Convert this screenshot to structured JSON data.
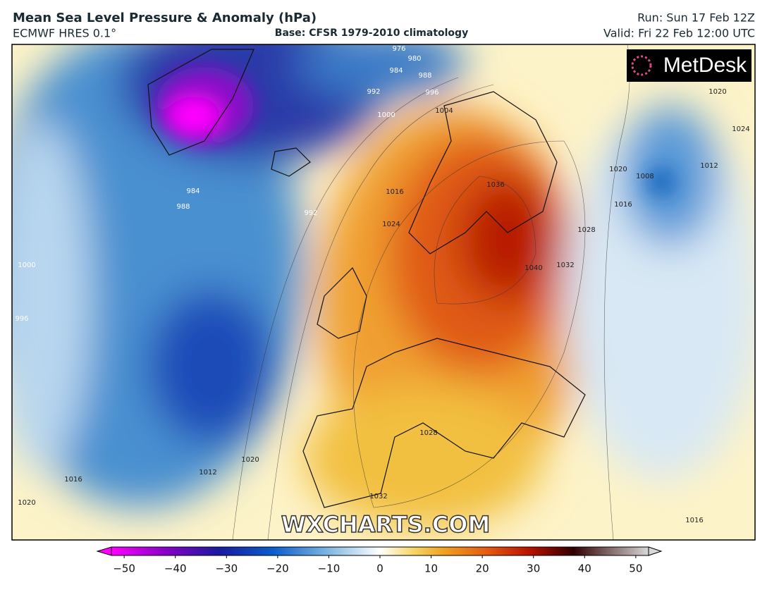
{
  "header": {
    "title": "Mean Sea Level Pressure & Anomaly (hPa)",
    "model": "ECMWF HRES 0.1°",
    "base": "Base: CFSR 1979-2010 climatology",
    "run": "Run: Sun 17 Feb 12Z",
    "valid": "Valid: Fri 22 Feb 12:00 UTC"
  },
  "logo": "MetDesk",
  "watermark": "WXCHARTS.COM",
  "isobar_labels": [
    976,
    980,
    984,
    988,
    992,
    996,
    1000,
    1004,
    1016,
    1024,
    1036,
    1040,
    1032,
    1028,
    1020,
    1016,
    1008,
    1012,
    984,
    988,
    992,
    1000,
    996,
    1012,
    1020,
    1016,
    1020,
    1028,
    1032,
    1016,
    1020,
    1024
  ],
  "colorbar": {
    "lim": [
      -52.5,
      52.5
    ],
    "ticks": [
      {
        "value": -50,
        "label": "−50"
      },
      {
        "value": -40,
        "label": "−40"
      },
      {
        "value": -30,
        "label": "−30"
      },
      {
        "value": -20,
        "label": "−20"
      },
      {
        "value": -10,
        "label": "−10"
      },
      0,
      10,
      20,
      30,
      40,
      50
    ]
  }
}
